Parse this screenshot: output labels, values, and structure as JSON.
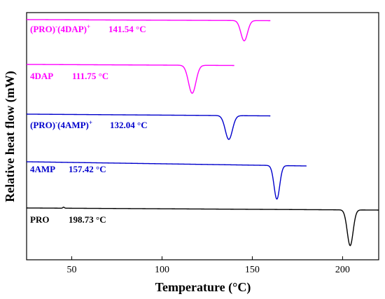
{
  "chart_data": {
    "type": "line",
    "title": "",
    "xlabel": "Temperature (°C)",
    "ylabel": "Relative heat flow (mW)",
    "xlim": [
      25,
      220
    ],
    "x_ticks": [
      50,
      100,
      150,
      200
    ],
    "y_ticks_shown": false,
    "grid": false,
    "legend": "none (labels next to each curve)",
    "series": [
      {
        "key": "pro_4dap",
        "label_main": "(PRO)",
        "label_sup1": "-",
        "label_mid": "(4DAP)",
        "label_sup2": "+",
        "value_label": "141.54 °C",
        "color": "#ff00ff",
        "x_range": [
          25,
          160
        ],
        "peak_x": 145.5,
        "peak_width": 2.6,
        "peak_depth": 29,
        "drift": 1.5,
        "noise": []
      },
      {
        "key": "dap",
        "label_main": "4DAP",
        "value_label": "111.75 °C",
        "color": "#ff00ff",
        "x_range": [
          25,
          140
        ],
        "peak_x": 116.7,
        "peak_width": 2.9,
        "peak_depth": 40,
        "drift": 1.5,
        "noise": []
      },
      {
        "key": "pro_4amp",
        "label_main": "(PRO)",
        "label_sup1": "-",
        "label_mid": "(4AMP)",
        "label_sup2": "+",
        "value_label": "132.04 °C",
        "color": "#0000cc",
        "x_range": [
          25,
          160
        ],
        "peak_x": 137.0,
        "peak_width": 2.8,
        "peak_depth": 34,
        "drift": 2.5,
        "noise": []
      },
      {
        "key": "amp",
        "label_main": "4AMP",
        "value_label": "157.42 °C",
        "color": "#0000cc",
        "x_range": [
          25,
          180
        ],
        "peak_x": 163.6,
        "peak_width": 2.2,
        "peak_depth": 48,
        "drift": 6,
        "noise": []
      },
      {
        "key": "pro",
        "label_main": "PRO",
        "value_label": "198.73 °C",
        "color": "#000000",
        "x_range": [
          25,
          220
        ],
        "peak_x": 204.2,
        "peak_width": 2.3,
        "peak_depth": 51,
        "drift": 3,
        "noise": [
          [
            45.5,
            -1.5
          ]
        ]
      }
    ]
  }
}
